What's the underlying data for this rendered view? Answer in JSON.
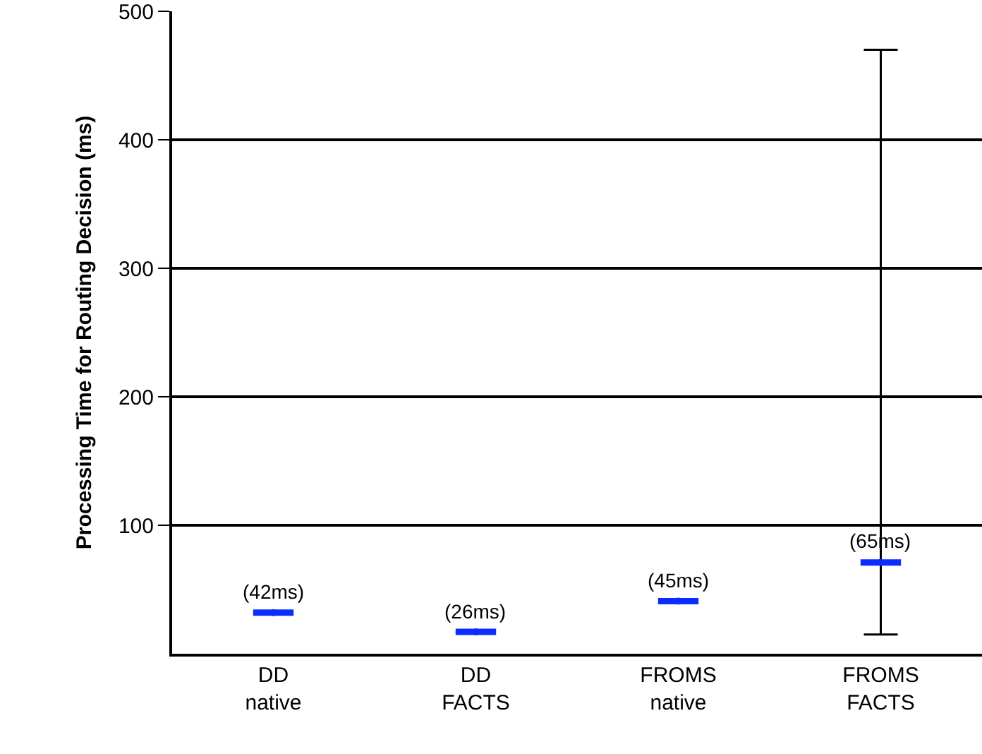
{
  "chart_data": {
    "type": "scatter",
    "ylabel": "Processing Time for Routing Decision (ms)",
    "categories": [
      "DD\nnative",
      "DD\nFACTS",
      "FROMS\nnative",
      "FROMS\nFACTS"
    ],
    "series": [
      {
        "color": "#0a2cff",
        "values": [
          32,
          17,
          41,
          71
        ],
        "errors": [
          null,
          null,
          null,
          [
            15,
            470
          ]
        ]
      }
    ],
    "annotations": [
      {
        "text": "(42ms)",
        "x": "DD\nnative",
        "y": 32
      },
      {
        "text": "(26ms)",
        "x": "DD\nFACTS",
        "y": 17
      },
      {
        "text": "(45ms)",
        "x": "FROMS\nnative",
        "y": 41
      },
      {
        "text": "(65ms)",
        "x": "FROMS\nFACTS",
        "y": 71
      }
    ],
    "ylim": [
      0,
      500
    ],
    "yticks": [
      100,
      200,
      300,
      400,
      500
    ],
    "grid": "y"
  }
}
